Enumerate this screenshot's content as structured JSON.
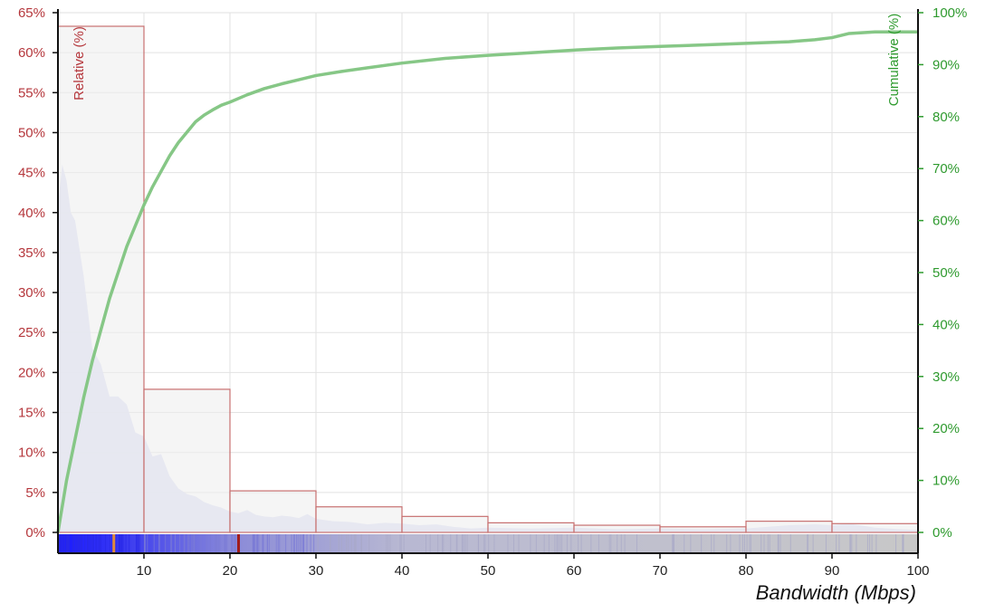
{
  "chart_data": {
    "type": "bar",
    "xlabel": "Bandwidth (Mbps)",
    "ylabel_left": "Relative (%)",
    "ylabel_right": "Cumulative (%)",
    "xlim": [
      0,
      100
    ],
    "ylim_left": [
      0,
      65
    ],
    "ylim_right": [
      0,
      100
    ],
    "x_ticks": [
      "10",
      "20",
      "30",
      "40",
      "50",
      "60",
      "70",
      "80",
      "90",
      "100"
    ],
    "y_left_ticks": [
      "0%",
      "5%",
      "10%",
      "15%",
      "20%",
      "25%",
      "30%",
      "35%",
      "40%",
      "45%",
      "50%",
      "55%",
      "60%",
      "65%"
    ],
    "y_right_ticks": [
      "0%",
      "10%",
      "20%",
      "30%",
      "40%",
      "50%",
      "60%",
      "70%",
      "80%",
      "90%",
      "100%"
    ],
    "grid": true,
    "histogram": {
      "name": "Relative (%)",
      "bin_edges": [
        0,
        10,
        20,
        30,
        40,
        50,
        60,
        70,
        80,
        90,
        100
      ],
      "values": [
        63.3,
        17.9,
        5.2,
        3.2,
        2.0,
        1.2,
        0.9,
        0.7,
        1.4,
        1.1
      ]
    },
    "density": {
      "x": [
        0,
        0.5,
        1,
        1.5,
        2,
        3,
        4,
        5,
        6,
        7,
        8,
        9,
        10,
        11,
        12,
        13,
        14,
        15,
        16,
        17,
        18,
        19,
        20,
        21,
        22,
        23,
        24,
        25,
        26,
        27,
        28,
        29,
        30,
        32,
        34,
        36,
        38,
        40,
        42,
        44,
        46,
        48,
        50,
        55,
        60,
        65,
        70,
        75,
        80,
        85,
        88,
        90,
        92,
        95,
        98,
        100
      ],
      "values": [
        41,
        46,
        44,
        40,
        39,
        32,
        23,
        21,
        17,
        17,
        16,
        12.5,
        12,
        9.5,
        9.8,
        7,
        5.5,
        4.8,
        4.5,
        3.8,
        3.4,
        3.1,
        2.6,
        2.4,
        2.8,
        2.2,
        2.0,
        1.9,
        2.1,
        2.0,
        1.8,
        2.3,
        1.7,
        1.4,
        1.3,
        1.0,
        1.2,
        1.1,
        0.9,
        1.0,
        0.7,
        0.5,
        0.6,
        0.5,
        0.6,
        0.4,
        0.5,
        0.4,
        0.5,
        0.9,
        1.0,
        0.9,
        1.1,
        0.6,
        0.4,
        0.3
      ]
    },
    "cumulative": {
      "name": "Cumulative (%)",
      "x": [
        0,
        1,
        2,
        3,
        4,
        5,
        6,
        7,
        8,
        9,
        10,
        11,
        12,
        13,
        14,
        15,
        16,
        17,
        18,
        19,
        20,
        22,
        24,
        26,
        28,
        30,
        33,
        36,
        40,
        45,
        50,
        55,
        60,
        65,
        70,
        75,
        80,
        85,
        88,
        90,
        92,
        95,
        98,
        100
      ],
      "values": [
        0,
        10,
        18,
        26,
        33,
        39,
        45,
        50,
        55,
        59,
        63,
        66.5,
        69.5,
        72.5,
        75,
        77,
        79,
        80.3,
        81.3,
        82.2,
        82.8,
        84.2,
        85.4,
        86.3,
        87.1,
        87.9,
        88.7,
        89.4,
        90.3,
        91.2,
        91.8,
        92.3,
        92.8,
        93.2,
        93.5,
        93.8,
        94.1,
        94.4,
        94.8,
        95.2,
        96.0,
        96.3,
        96.3,
        96.3
      ]
    },
    "rug_markers": [
      {
        "x": 6.5,
        "color": "#e08a3a"
      },
      {
        "x": 21,
        "color": "#a01c1c"
      }
    ],
    "colors": {
      "histogram_fill": "#efefef",
      "histogram_stroke": "#c77070",
      "density_fill": "#d9dbf3",
      "cumulative_line": "#86c786",
      "left_axis_text": "#b5373c",
      "right_axis_text": "#2e9a2e",
      "rug_start": "#1a1aff",
      "rug_end": "#c8c8c8"
    }
  }
}
